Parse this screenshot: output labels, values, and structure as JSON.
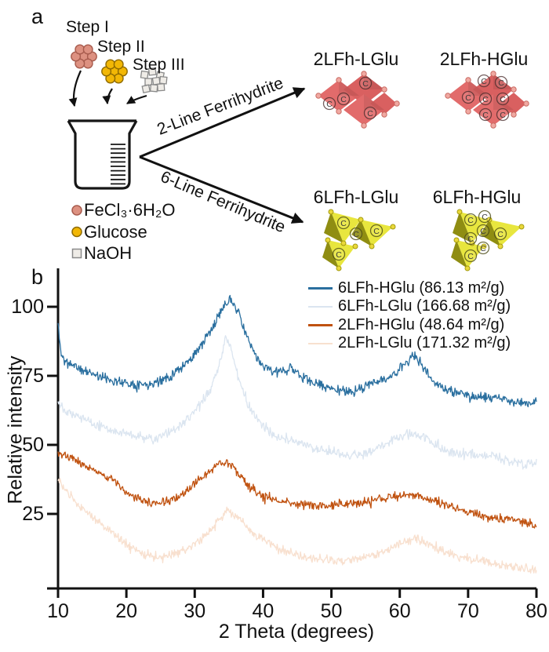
{
  "figure": {
    "panel_a_label": "a",
    "panel_b_label": "b"
  },
  "panel_a": {
    "steps": [
      {
        "label": "Step I",
        "icon": "fecl3-cluster-icon"
      },
      {
        "label": "Step II",
        "icon": "glucose-cluster-icon"
      },
      {
        "label": "Step III",
        "icon": "naoh-cluster-icon"
      }
    ],
    "reagent_legend": [
      {
        "label": "FeCl₃·6H₂O",
        "marker": "circle",
        "color": "#dd9181",
        "stroke": "#a85c4e"
      },
      {
        "label": "Glucose",
        "marker": "circle",
        "color": "#f2b705",
        "stroke": "#8f6b00"
      },
      {
        "label": "NaOH",
        "marker": "square",
        "color": "#efece7",
        "stroke": "#8a8a8a"
      }
    ],
    "branches": [
      {
        "label": "2-Line Ferrihydrite",
        "polyhedra_color": "#e26b6b",
        "products": [
          {
            "name": "2LFh-LGlu",
            "carbon_sites": 4
          },
          {
            "name": "2LFh-HGlu",
            "carbon_sites": 7
          }
        ]
      },
      {
        "label": "6-Line Ferrihydrite",
        "polyhedra_color": "#e8e63e",
        "products": [
          {
            "name": "6LFh-LGlu",
            "carbon_sites": 4
          },
          {
            "name": "6LFh-HGlu",
            "carbon_sites": 7
          }
        ]
      }
    ],
    "carbon_symbol": "C"
  },
  "chart_data": {
    "type": "line",
    "title": "",
    "xlabel": "2 Theta (degrees)",
    "ylabel": "Relative intensity",
    "xlim": [
      10,
      80
    ],
    "ylim": [
      0,
      110
    ],
    "xticks": [
      10,
      20,
      30,
      40,
      50,
      60,
      70,
      80
    ],
    "yticks": [
      25,
      50,
      75,
      100
    ],
    "grid": false,
    "legend_position": "top-right",
    "series": [
      {
        "name": "6LFh-HGlu",
        "legend_label": "6LFh-HGlu (86.13 m²/g)",
        "surface_area_m2_per_g": 86.13,
        "color": "#2a6f9f",
        "noise": 1.3,
        "keypoints": [
          [
            10,
            94
          ],
          [
            10.4,
            84
          ],
          [
            11,
            80
          ],
          [
            12,
            79
          ],
          [
            13.5,
            77
          ],
          [
            15,
            76
          ],
          [
            17,
            74
          ],
          [
            19,
            73
          ],
          [
            21,
            72
          ],
          [
            23,
            72
          ],
          [
            25,
            73
          ],
          [
            27,
            76
          ],
          [
            29,
            80
          ],
          [
            31,
            86
          ],
          [
            33,
            94
          ],
          [
            34.3,
            101
          ],
          [
            35,
            103
          ],
          [
            35.8,
            101
          ],
          [
            36.5,
            97
          ],
          [
            37.5,
            90
          ],
          [
            38.5,
            84
          ],
          [
            39.5,
            80
          ],
          [
            41,
            77
          ],
          [
            42.5,
            76
          ],
          [
            44,
            78
          ],
          [
            45.5,
            75
          ],
          [
            47,
            73
          ],
          [
            49,
            71
          ],
          [
            51,
            70
          ],
          [
            53,
            69
          ],
          [
            55,
            71
          ],
          [
            56.5,
            73
          ],
          [
            58,
            74
          ],
          [
            59.5,
            76
          ],
          [
            61,
            80
          ],
          [
            62,
            82
          ],
          [
            63,
            80
          ],
          [
            64,
            76
          ],
          [
            65,
            73
          ],
          [
            66.5,
            70
          ],
          [
            68,
            69
          ],
          [
            70,
            68
          ],
          [
            72,
            67
          ],
          [
            74,
            67
          ],
          [
            76,
            66
          ],
          [
            78,
            65
          ],
          [
            80,
            66
          ]
        ]
      },
      {
        "name": "6LFh-LGlu",
        "legend_label": "6LFh-LGlu (166.68 m²/g)",
        "surface_area_m2_per_g": 166.68,
        "color": "#dbe5f0",
        "noise": 1.3,
        "keypoints": [
          [
            10,
            66
          ],
          [
            11,
            63
          ],
          [
            12.5,
            61
          ],
          [
            14,
            59
          ],
          [
            16,
            57
          ],
          [
            18,
            55
          ],
          [
            20,
            54
          ],
          [
            22,
            53
          ],
          [
            24,
            52
          ],
          [
            26,
            54
          ],
          [
            28,
            57
          ],
          [
            30,
            62
          ],
          [
            32,
            69
          ],
          [
            33.5,
            78
          ],
          [
            34.5,
            88
          ],
          [
            35.3,
            85
          ],
          [
            36,
            78
          ],
          [
            37,
            70
          ],
          [
            38,
            63
          ],
          [
            39.5,
            58
          ],
          [
            41,
            55
          ],
          [
            43,
            52
          ],
          [
            45,
            51
          ],
          [
            47,
            49
          ],
          [
            49,
            48
          ],
          [
            51,
            47
          ],
          [
            53,
            46
          ],
          [
            55,
            47
          ],
          [
            57,
            49
          ],
          [
            58.5,
            51
          ],
          [
            60,
            53
          ],
          [
            62,
            54
          ],
          [
            63.5,
            53
          ],
          [
            65,
            50
          ],
          [
            66.5,
            48
          ],
          [
            68,
            47
          ],
          [
            70,
            47
          ],
          [
            72,
            46
          ],
          [
            74,
            46
          ],
          [
            76,
            44
          ],
          [
            78,
            43
          ],
          [
            80,
            44
          ]
        ]
      },
      {
        "name": "2LFh-HGlu",
        "legend_label": "2LFh-HGlu (48.64 m²/g)",
        "surface_area_m2_per_g": 48.64,
        "color": "#c05210",
        "noise": 1.2,
        "keypoints": [
          [
            10,
            47
          ],
          [
            11,
            46
          ],
          [
            12,
            45
          ],
          [
            13,
            44
          ],
          [
            14.5,
            42
          ],
          [
            16,
            40
          ],
          [
            17.5,
            38
          ],
          [
            19,
            35
          ],
          [
            20.5,
            32
          ],
          [
            22,
            30
          ],
          [
            23.5,
            29
          ],
          [
            25,
            29
          ],
          [
            26.5,
            30
          ],
          [
            28,
            32
          ],
          [
            30,
            36
          ],
          [
            32,
            40
          ],
          [
            33.5,
            43
          ],
          [
            34.5,
            44
          ],
          [
            35.5,
            43
          ],
          [
            36.5,
            39
          ],
          [
            37.5,
            36
          ],
          [
            39,
            33
          ],
          [
            40,
            31
          ],
          [
            42,
            30
          ],
          [
            44,
            29
          ],
          [
            46,
            28.5
          ],
          [
            48,
            28
          ],
          [
            50,
            28
          ],
          [
            52,
            28.5
          ],
          [
            54,
            29
          ],
          [
            56,
            30
          ],
          [
            58,
            31
          ],
          [
            60,
            31.5
          ],
          [
            61.5,
            32
          ],
          [
            63,
            31.5
          ],
          [
            64.5,
            30.5
          ],
          [
            66,
            29
          ],
          [
            68,
            27
          ],
          [
            70,
            25.5
          ],
          [
            72,
            24.5
          ],
          [
            74,
            23.5
          ],
          [
            76,
            23
          ],
          [
            78,
            22
          ],
          [
            80,
            21
          ]
        ]
      },
      {
        "name": "2LFh-LGlu",
        "legend_label": "2LFh-LGlu (171.32 m²/g)",
        "surface_area_m2_per_g": 171.32,
        "color": "#f8e0cf",
        "noise": 1.2,
        "keypoints": [
          [
            10,
            37
          ],
          [
            11,
            34
          ],
          [
            12,
            31
          ],
          [
            13,
            28
          ],
          [
            14.5,
            25
          ],
          [
            16,
            22
          ],
          [
            17.5,
            19
          ],
          [
            19,
            16
          ],
          [
            20.5,
            13
          ],
          [
            22,
            11
          ],
          [
            23.5,
            10
          ],
          [
            25,
            9.5
          ],
          [
            26.5,
            10
          ],
          [
            28,
            11.5
          ],
          [
            30,
            14
          ],
          [
            32,
            18
          ],
          [
            33.5,
            23
          ],
          [
            34.8,
            26
          ],
          [
            36,
            24
          ],
          [
            37.5,
            21
          ],
          [
            39,
            17
          ],
          [
            41,
            14
          ],
          [
            43,
            12
          ],
          [
            45,
            10
          ],
          [
            47,
            9
          ],
          [
            49,
            8.5
          ],
          [
            51,
            8
          ],
          [
            53,
            8.5
          ],
          [
            55,
            9.5
          ],
          [
            57,
            11
          ],
          [
            59,
            13
          ],
          [
            61,
            15
          ],
          [
            62.3,
            16
          ],
          [
            63.5,
            15
          ],
          [
            65,
            13
          ],
          [
            66.5,
            11.5
          ],
          [
            68,
            10
          ],
          [
            70,
            9
          ],
          [
            72,
            8
          ],
          [
            74,
            7
          ],
          [
            76,
            6
          ],
          [
            78,
            5.5
          ],
          [
            80,
            5
          ]
        ]
      }
    ]
  }
}
